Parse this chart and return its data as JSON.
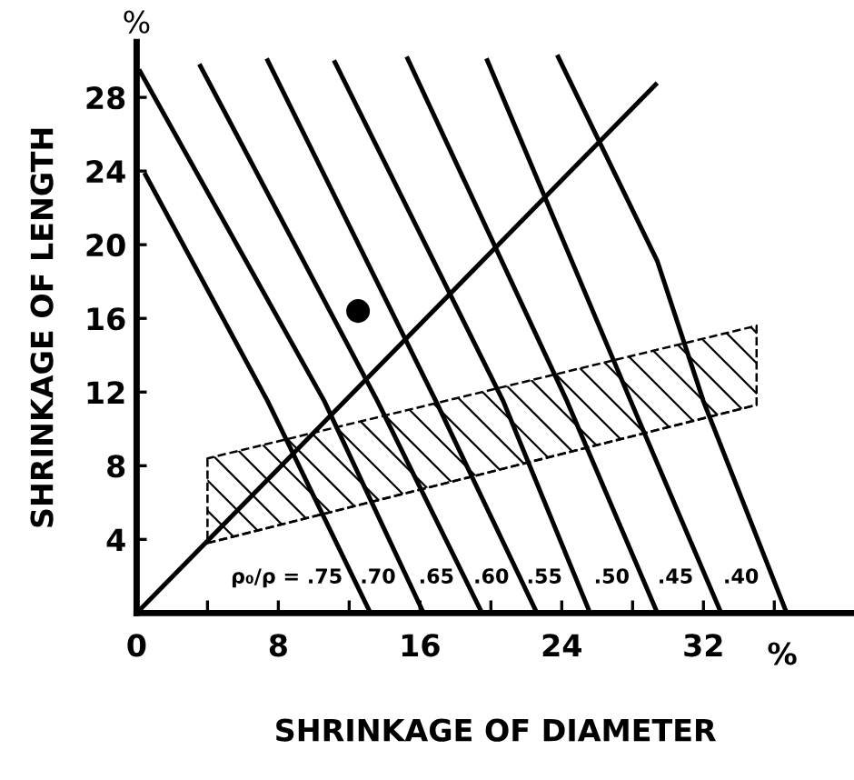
{
  "chart_data": {
    "type": "line",
    "xlabel": "SHRINKAGE OF DIAMETER",
    "ylabel": "SHRINKAGE OF LENGTH",
    "xlim": [
      0,
      40.5
    ],
    "ylim": [
      0,
      31
    ],
    "xticks": [
      0,
      {
        "value": 4,
        "label": null
      },
      8,
      {
        "value": 12,
        "label": null
      },
      16,
      {
        "value": 20,
        "label": null
      },
      24,
      {
        "value": 28,
        "label": null
      },
      32,
      {
        "value": 36,
        "label": null
      }
    ],
    "yticks": [
      4,
      8,
      12,
      16,
      20,
      24,
      28
    ],
    "grid": false,
    "legend": false,
    "marker": "none",
    "line_style": "solid",
    "series": [
      {
        "color": "#000000",
        "x": [
          0.5,
          7.4,
          13.2
        ],
        "values": [
          23.8,
          11.5,
          0
        ]
      },
      {
        "color": "#000000",
        "x": [
          0.2,
          10.6,
          16.2
        ],
        "values": [
          29.4,
          11.5,
          0
        ]
      },
      {
        "color": "#000000",
        "x": [
          3.6,
          13.6,
          19.5
        ],
        "values": [
          29.7,
          11.5,
          0
        ]
      },
      {
        "color": "#000000",
        "x": [
          7.4,
          16.9,
          22.6
        ],
        "values": [
          30.0,
          11.5,
          0
        ]
      },
      {
        "color": "#000000",
        "x": [
          11.2,
          20.7,
          25.6
        ],
        "values": [
          29.9,
          11.5,
          0
        ]
      },
      {
        "color": "#000000",
        "x": [
          15.3,
          24.3,
          29.4
        ],
        "values": [
          30.1,
          11.5,
          0
        ]
      },
      {
        "color": "#000000",
        "x": [
          19.8,
          27.9,
          33.0
        ],
        "values": [
          30.0,
          11.5,
          0
        ]
      },
      {
        "color": "#000000",
        "x": [
          23.8,
          29.4,
          32.0,
          36.7
        ],
        "values": [
          30.2,
          19.1,
          11.5,
          0
        ]
      },
      {
        "color": "#000000",
        "x": [
          0,
          29.3
        ],
        "values": [
          0,
          28.7
        ]
      },
      {
        "type": "scatter",
        "marker": "circle",
        "color": "#000000",
        "x": [
          12.5
        ],
        "values": [
          16.4
        ]
      },
      {
        "color": "#000000",
        "line_style": "dashed",
        "x": [
          4,
          35
        ],
        "values": [
          3.8,
          11.3
        ]
      },
      {
        "type": "area",
        "color": "#000000",
        "line_style": "dashed",
        "x": [
          4,
          35
        ],
        "values": [
          8.4,
          15.6
        ]
      }
    ],
    "annotations": [
      "ρ₀/ρ = .75",
      ".70",
      ".65",
      ".60",
      ".55",
      ".50",
      ".45",
      ".40",
      "%",
      "%"
    ]
  }
}
